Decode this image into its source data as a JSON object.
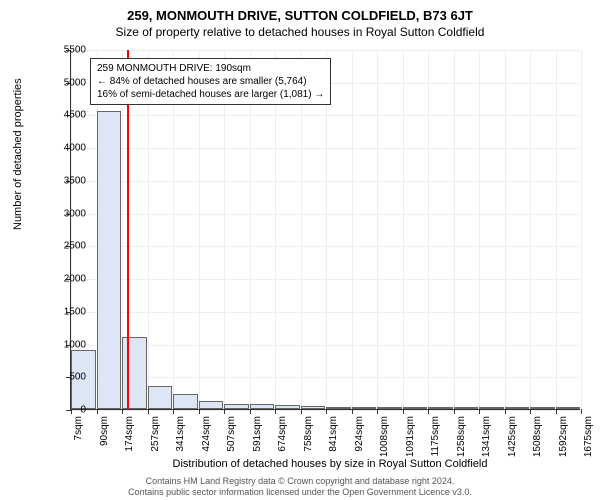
{
  "title_main": "259, MONMOUTH DRIVE, SUTTON COLDFIELD, B73 6JT",
  "title_sub": "Size of property relative to detached houses in Royal Sutton Coldfield",
  "chart": {
    "type": "histogram",
    "ylabel": "Number of detached properties",
    "xlabel": "Distribution of detached houses by size in Royal Sutton Coldfield",
    "ylim": [
      0,
      5500
    ],
    "ytick_step": 500,
    "yticks": [
      0,
      500,
      1000,
      1500,
      2000,
      2500,
      3000,
      3500,
      4000,
      4500,
      5000,
      5500
    ],
    "xticks": [
      "7sqm",
      "90sqm",
      "174sqm",
      "257sqm",
      "341sqm",
      "424sqm",
      "507sqm",
      "591sqm",
      "674sqm",
      "758sqm",
      "841sqm",
      "924sqm",
      "1008sqm",
      "1091sqm",
      "1175sqm",
      "1258sqm",
      "1341sqm",
      "1425sqm",
      "1508sqm",
      "1592sqm",
      "1675sqm"
    ],
    "bar_values": [
      900,
      4550,
      1100,
      350,
      230,
      130,
      80,
      70,
      60,
      40,
      30,
      25,
      20,
      15,
      12,
      10,
      8,
      7,
      5,
      4
    ],
    "bar_fill": "#dce6f5",
    "bar_stroke": "#666666",
    "grid_color": "#eeeeee",
    "background_color": "#ffffff",
    "marker_value_sqm": 190,
    "marker_line_color": "#ff0000"
  },
  "annotation": {
    "line1": "259 MONMOUTH DRIVE: 190sqm",
    "line2": "← 84% of detached houses are smaller (5,764)",
    "line3": "16% of semi-detached houses are larger (1,081) →"
  },
  "footer": {
    "line1": "Contains HM Land Registry data © Crown copyright and database right 2024.",
    "line2": "Contains public sector information licensed under the Open Government Licence v3.0."
  }
}
